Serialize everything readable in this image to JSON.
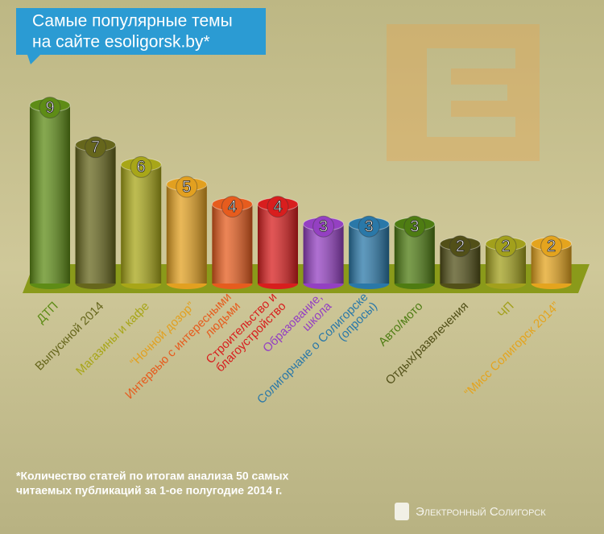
{
  "chart_data": {
    "type": "bar",
    "title": [
      "Самые популярные темы",
      "на сайте esoligorsk.by*"
    ],
    "categories": [
      [
        "ДТП"
      ],
      [
        "Выпускной 2014"
      ],
      [
        "Магазины и кафе"
      ],
      [
        "“Ночной дозор”"
      ],
      [
        "Интервью с интересными",
        "людьми"
      ],
      [
        "Строительство и",
        "благоустройство"
      ],
      [
        "Образование,",
        "школа"
      ],
      [
        "Солигорчане о Солигорске",
        "(опросы)"
      ],
      [
        "Авто/мото"
      ],
      [
        "Отдых/развлечения"
      ],
      [
        "ЧП"
      ],
      [
        "“Мисс Солигорск 2014”"
      ]
    ],
    "values": [
      9,
      7,
      6,
      5,
      4,
      4,
      3,
      3,
      3,
      2,
      2,
      2
    ],
    "colors": [
      "#5e8c16",
      "#66661c",
      "#a8a618",
      "#e2a020",
      "#e65c1e",
      "#d81e1e",
      "#9440c2",
      "#2a78a8",
      "#4e7c12",
      "#525018",
      "#a2a01c",
      "#e4a41e"
    ],
    "footnote": [
      "*Количество статей по итогам анализа 50 самых",
      "читаемых публикаций за 1-ое полугодие 2014 г."
    ],
    "brand": "Электронный Солигорск"
  }
}
